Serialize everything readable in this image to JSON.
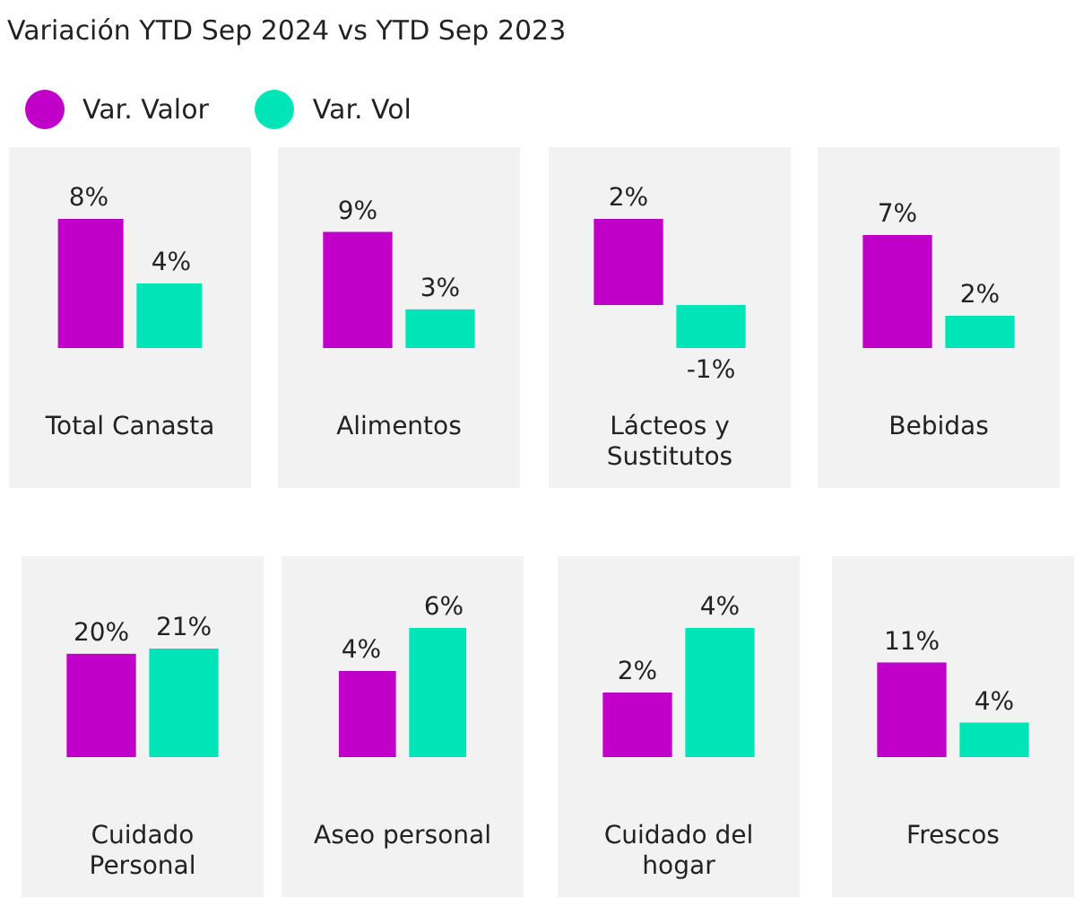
{
  "chart_data": [
    {
      "type": "bar",
      "title": "Variación YTD Sep 2024 vs YTD Sep 2023",
      "legend": "top",
      "categories": [
        "Total Canasta"
      ],
      "series": [
        {
          "name": "Var. Valor",
          "color": "#c000c8",
          "values": [
            8
          ],
          "value_labels": [
            "8%"
          ]
        },
        {
          "name": "Var. Vol",
          "color": "#00e5b8",
          "values": [
            4
          ],
          "value_labels": [
            "4%"
          ]
        }
      ]
    },
    {
      "type": "bar",
      "categories": [
        "Alimentos"
      ],
      "series": [
        {
          "color": "#c000c8",
          "values": [
            9
          ],
          "value_labels": [
            "9%"
          ]
        },
        {
          "color": "#00e5b8",
          "values": [
            3
          ],
          "value_labels": [
            "3%"
          ]
        }
      ]
    },
    {
      "type": "bar",
      "categories": [
        "Lácteos y Sustitutos"
      ],
      "series": [
        {
          "color": "#c000c8",
          "values": [
            2
          ],
          "value_labels": [
            "2%"
          ]
        },
        {
          "color": "#00e5b8",
          "values": [
            -1
          ],
          "value_labels": [
            "-1%"
          ]
        }
      ]
    },
    {
      "type": "bar",
      "categories": [
        "Bebidas"
      ],
      "series": [
        {
          "color": "#c000c8",
          "values": [
            7
          ],
          "value_labels": [
            "7%"
          ]
        },
        {
          "color": "#00e5b8",
          "values": [
            2
          ],
          "value_labels": [
            "2%"
          ]
        }
      ]
    },
    {
      "type": "bar",
      "categories": [
        "Cuidado Personal"
      ],
      "series": [
        {
          "color": "#c000c8",
          "values": [
            20
          ],
          "value_labels": [
            "20%"
          ]
        },
        {
          "color": "#00e5b8",
          "values": [
            21
          ],
          "value_labels": [
            "21%"
          ]
        }
      ]
    },
    {
      "type": "bar",
      "categories": [
        "Aseo personal"
      ],
      "series": [
        {
          "color": "#c000c8",
          "values": [
            4
          ],
          "value_labels": [
            "4%"
          ]
        },
        {
          "color": "#00e5b8",
          "values": [
            6
          ],
          "value_labels": [
            "6%"
          ]
        }
      ]
    },
    {
      "type": "bar",
      "categories": [
        "Cuidado del hogar"
      ],
      "series": [
        {
          "color": "#c000c8",
          "values": [
            2
          ],
          "value_labels": [
            "2%"
          ]
        },
        {
          "color": "#00e5b8",
          "values": [
            4
          ],
          "value_labels": [
            "4%"
          ]
        }
      ]
    },
    {
      "type": "bar",
      "categories": [
        "Frescos"
      ],
      "series": [
        {
          "color": "#c000c8",
          "values": [
            11
          ],
          "value_labels": [
            "11%"
          ]
        },
        {
          "color": "#00e5b8",
          "values": [
            4
          ],
          "value_labels": [
            "4%"
          ]
        }
      ]
    }
  ]
}
